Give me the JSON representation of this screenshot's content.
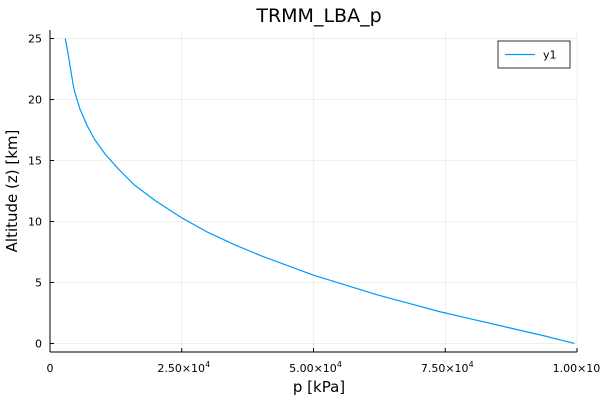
{
  "chart_data": {
    "type": "line",
    "title": "TRMM_LBA_p",
    "xlabel": "p [kPa]",
    "ylabel": "Altitude (z) [km]",
    "xlim": [
      0,
      100000
    ],
    "ylim": [
      -0.7,
      25.7
    ],
    "xticks": [
      {
        "value": 0,
        "mantissa": "0",
        "exp": ""
      },
      {
        "value": 25000,
        "mantissa": "2.50×10",
        "exp": "4"
      },
      {
        "value": 50000,
        "mantissa": "5.00×10",
        "exp": "4"
      },
      {
        "value": 75000,
        "mantissa": "7.50×10",
        "exp": "4"
      },
      {
        "value": 100000,
        "mantissa": "1.00×10",
        "exp": "5"
      }
    ],
    "yticks": [
      {
        "value": 0,
        "label": "0"
      },
      {
        "value": 5,
        "label": "5"
      },
      {
        "value": 10,
        "label": "10"
      },
      {
        "value": 15,
        "label": "15"
      },
      {
        "value": 20,
        "label": "20"
      },
      {
        "value": 25,
        "label": "25"
      }
    ],
    "grid": true,
    "legend_position": "top-right",
    "series": [
      {
        "name": "y1",
        "color": "#009AFA",
        "x": [
          99500,
          94000,
          87000,
          80000,
          74000,
          68000,
          62000,
          56000,
          50000,
          45000,
          40000,
          35000,
          30000,
          25000,
          20000,
          16000,
          13000,
          10500,
          8500,
          7000,
          5700,
          4700,
          4400,
          3900,
          3500,
          3200,
          2900
        ],
        "y": [
          0,
          0.6,
          1.3,
          2.0,
          2.6,
          3.3,
          4.0,
          4.8,
          5.6,
          6.4,
          7.2,
          8.1,
          9.1,
          10.3,
          11.7,
          13.0,
          14.3,
          15.5,
          16.7,
          17.9,
          19.2,
          20.6,
          21.2,
          22.5,
          23.6,
          24.3,
          25.0
        ]
      }
    ]
  }
}
